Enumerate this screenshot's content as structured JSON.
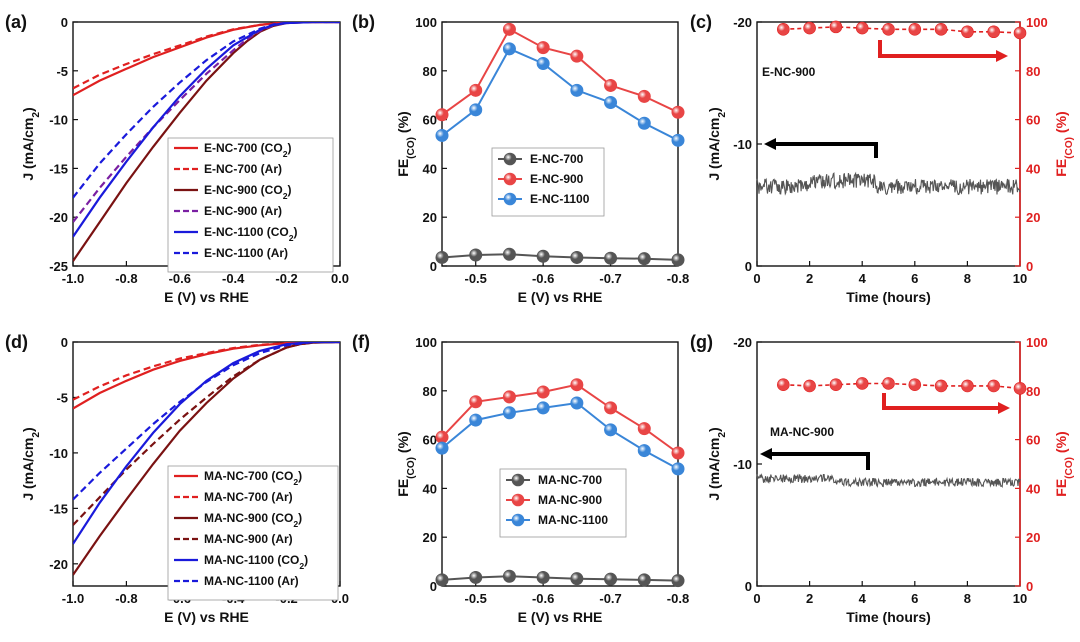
{
  "colors": {
    "red": "#e02020",
    "dark_red": "#7a1212",
    "purple": "#7a1fa2",
    "blue": "#1a1adb",
    "gray": "#555555",
    "sphere_red": "#e84545",
    "sphere_blue": "#3a86d8",
    "sphere_gray": "#555555"
  },
  "chart_data": [
    {
      "id": "a",
      "panel_label": "(a)",
      "type": "line",
      "xlabel": "E (V) vs RHE",
      "ylabel": "J (mA/cm²)",
      "ylabel_parts": [
        "J (mA/cm",
        "2",
        ")"
      ],
      "xlim": [
        -1.0,
        0.0
      ],
      "ylim": [
        -25,
        0
      ],
      "xticks": [
        "-1.0",
        "-0.8",
        "-0.6",
        "-0.4",
        "-0.2",
        "0.0"
      ],
      "xtick_values": [
        -1.0,
        -0.8,
        -0.6,
        -0.4,
        -0.2,
        0.0
      ],
      "yticks": [
        "-25",
        "-20",
        "-15",
        "-10",
        "-5",
        "0"
      ],
      "ytick_values": [
        -25,
        -20,
        -15,
        -10,
        -5,
        0
      ],
      "legend_position": "lower-right",
      "series": [
        {
          "name": "E-NC-700 (CO₂)",
          "name_parts": [
            "E-NC-700 (CO",
            "2",
            ")"
          ],
          "color": "red",
          "dash": false,
          "x": [
            -1.0,
            -0.9,
            -0.8,
            -0.7,
            -0.6,
            -0.5,
            -0.4,
            -0.3,
            -0.25,
            -0.2,
            -0.1,
            0.0
          ],
          "y": [
            -7.5,
            -6.0,
            -4.8,
            -3.6,
            -2.6,
            -1.6,
            -0.8,
            -0.3,
            -0.15,
            -0.05,
            0,
            0
          ]
        },
        {
          "name": "E-NC-700 (Ar)",
          "name_parts": [
            "E-NC-700 (Ar)"
          ],
          "color": "red",
          "dash": true,
          "x": [
            -1.0,
            -0.9,
            -0.8,
            -0.7,
            -0.6,
            -0.5,
            -0.4,
            -0.3,
            -0.25,
            -0.2,
            -0.1,
            0.0
          ],
          "y": [
            -6.8,
            -5.4,
            -4.3,
            -3.3,
            -2.4,
            -1.5,
            -0.75,
            -0.3,
            -0.15,
            -0.05,
            0,
            0
          ]
        },
        {
          "name": "E-NC-900 (CO₂)",
          "name_parts": [
            "E-NC-900 (CO",
            "2",
            ")"
          ],
          "color": "dark_red",
          "dash": false,
          "x": [
            -1.0,
            -0.9,
            -0.8,
            -0.7,
            -0.6,
            -0.5,
            -0.4,
            -0.35,
            -0.3,
            -0.25,
            -0.2,
            -0.1,
            0.0
          ],
          "y": [
            -24.5,
            -20.5,
            -16.5,
            -12.8,
            -9.3,
            -6.0,
            -3.2,
            -2.0,
            -1.0,
            -0.4,
            -0.1,
            0,
            0
          ]
        },
        {
          "name": "E-NC-900 (Ar)",
          "name_parts": [
            "E-NC-900 (Ar)"
          ],
          "color": "purple",
          "dash": true,
          "x": [
            -1.0,
            -0.9,
            -0.8,
            -0.7,
            -0.6,
            -0.5,
            -0.4,
            -0.35,
            -0.3,
            -0.25,
            -0.2,
            -0.1,
            0.0
          ],
          "y": [
            -20.5,
            -17.0,
            -13.8,
            -10.8,
            -8.0,
            -5.3,
            -2.9,
            -1.8,
            -0.9,
            -0.35,
            -0.1,
            0,
            0
          ]
        },
        {
          "name": "E-NC-1100 (CO₂)",
          "name_parts": [
            "E-NC-1100 (CO",
            "2",
            ")"
          ],
          "color": "blue",
          "dash": false,
          "x": [
            -1.0,
            -0.9,
            -0.8,
            -0.7,
            -0.6,
            -0.5,
            -0.4,
            -0.3,
            -0.25,
            -0.2,
            -0.1,
            0.0
          ],
          "y": [
            -22.0,
            -18.0,
            -14.3,
            -10.8,
            -7.6,
            -4.8,
            -2.4,
            -0.8,
            -0.3,
            -0.1,
            0,
            0
          ]
        },
        {
          "name": "E-NC-1100 (Ar)",
          "name_parts": [
            "E-NC-1100 (Ar)"
          ],
          "color": "blue",
          "dash": true,
          "x": [
            -1.0,
            -0.9,
            -0.8,
            -0.7,
            -0.6,
            -0.5,
            -0.4,
            -0.3,
            -0.25,
            -0.2,
            -0.1,
            0.0
          ],
          "y": [
            -18.0,
            -14.5,
            -11.5,
            -8.7,
            -6.2,
            -3.9,
            -2.0,
            -0.7,
            -0.25,
            -0.08,
            0,
            0
          ]
        }
      ]
    },
    {
      "id": "b",
      "panel_label": "(b)",
      "type": "line",
      "xlabel": "E (V) vs RHE",
      "ylabel": "FE(CO) (%)",
      "ylabel_parts": [
        "FE",
        "(CO)",
        " (%)"
      ],
      "xlim": [
        -0.45,
        -0.8
      ],
      "ylim": [
        0,
        100
      ],
      "xticks": [
        "-0.5",
        "-0.6",
        "-0.7",
        "-0.8"
      ],
      "xtick_values": [
        -0.5,
        -0.6,
        -0.7,
        -0.8
      ],
      "yticks": [
        "0",
        "20",
        "40",
        "60",
        "80",
        "100"
      ],
      "ytick_values": [
        0,
        20,
        40,
        60,
        80,
        100
      ],
      "legend_position": "center",
      "x": [
        -0.45,
        -0.5,
        -0.55,
        -0.6,
        -0.65,
        -0.7,
        -0.75,
        -0.8
      ],
      "series": [
        {
          "name": "E-NC-700",
          "color": "sphere_gray",
          "values": [
            3.5,
            4.5,
            4.8,
            4.0,
            3.5,
            3.2,
            3.0,
            2.5
          ]
        },
        {
          "name": "E-NC-900",
          "color": "sphere_red",
          "values": [
            62,
            72,
            97,
            89.5,
            86,
            74,
            69.5,
            63
          ]
        },
        {
          "name": "E-NC-1100",
          "color": "sphere_blue",
          "values": [
            53.5,
            64,
            89,
            83,
            72,
            67,
            58.5,
            51.5
          ]
        }
      ]
    },
    {
      "id": "c",
      "panel_label": "(c)",
      "type": "line",
      "xlabel": "Time (hours)",
      "ylabel": "J (mA/cm²)",
      "ylabel_parts": [
        "J (mA/cm",
        "2",
        ")"
      ],
      "ylabel_right": "FE(CO) (%)",
      "ylabel_right_parts": [
        "FE",
        "(CO)",
        " (%)"
      ],
      "annotation": "E-NC-900",
      "xlim": [
        0,
        10
      ],
      "ylim": [
        0,
        -20
      ],
      "ylim_right": [
        0,
        100
      ],
      "xticks": [
        "0",
        "2",
        "4",
        "6",
        "8",
        "10"
      ],
      "xtick_values": [
        0,
        2,
        4,
        6,
        8,
        10
      ],
      "yticks": [
        "0",
        "-10",
        "-20"
      ],
      "ytick_values": [
        0,
        -10,
        -20
      ],
      "yticks_right": [
        "0",
        "20",
        "40",
        "60",
        "80",
        "100"
      ],
      "ytick_values_right": [
        0,
        20,
        40,
        60,
        80,
        100
      ],
      "current_mean": -6.5,
      "current_noise_points": 400,
      "fe_x": [
        1,
        2,
        3,
        4,
        5,
        6,
        7,
        8,
        9,
        10
      ],
      "fe_values": [
        97,
        97.5,
        98,
        97.5,
        97,
        97,
        97,
        96,
        96,
        95.5
      ]
    },
    {
      "id": "d",
      "panel_label": "(d)",
      "type": "line",
      "xlabel": "E (V) vs RHE",
      "ylabel": "J (mA/cm²)",
      "ylabel_parts": [
        "J (mA/cm",
        "2",
        ")"
      ],
      "xlim": [
        -1.0,
        0.0
      ],
      "ylim": [
        -22,
        0
      ],
      "xticks": [
        "-1.0",
        "-0.8",
        "-0.6",
        "-0.4",
        "-0.2",
        "0.0"
      ],
      "xtick_values": [
        -1.0,
        -0.8,
        -0.6,
        -0.4,
        -0.2,
        0.0
      ],
      "yticks": [
        "-20",
        "-15",
        "-10",
        "-5",
        "0"
      ],
      "ytick_values": [
        -20,
        -15,
        -10,
        -5,
        0
      ],
      "legend_position": "lower-right",
      "series": [
        {
          "name": "MA-NC-700 (CO₂)",
          "name_parts": [
            "MA-NC-700 (CO",
            "2",
            ")"
          ],
          "color": "red",
          "dash": false,
          "x": [
            -1.0,
            -0.9,
            -0.8,
            -0.7,
            -0.6,
            -0.5,
            -0.4,
            -0.3,
            -0.2,
            -0.1,
            0.0
          ],
          "y": [
            -6.0,
            -4.6,
            -3.5,
            -2.5,
            -1.7,
            -1.1,
            -0.6,
            -0.3,
            -0.1,
            0,
            0
          ]
        },
        {
          "name": "MA-NC-700 (Ar)",
          "name_parts": [
            "MA-NC-700 (Ar)"
          ],
          "color": "red",
          "dash": true,
          "x": [
            -1.0,
            -0.9,
            -0.8,
            -0.7,
            -0.6,
            -0.5,
            -0.4,
            -0.3,
            -0.2,
            -0.1,
            0.0
          ],
          "y": [
            -5.2,
            -4.0,
            -3.0,
            -2.2,
            -1.5,
            -1.0,
            -0.55,
            -0.25,
            -0.1,
            0,
            0
          ]
        },
        {
          "name": "MA-NC-900 (CO₂)",
          "name_parts": [
            "MA-NC-900 (CO",
            "2",
            ")"
          ],
          "color": "dark_red",
          "dash": false,
          "x": [
            -1.0,
            -0.9,
            -0.8,
            -0.7,
            -0.6,
            -0.5,
            -0.4,
            -0.3,
            -0.2,
            -0.15,
            -0.1,
            0.0
          ],
          "y": [
            -21.0,
            -17.5,
            -14.2,
            -11.0,
            -8.0,
            -5.5,
            -3.3,
            -1.6,
            -0.5,
            -0.2,
            -0.05,
            0
          ]
        },
        {
          "name": "MA-NC-900 (Ar)",
          "name_parts": [
            "MA-NC-900 (Ar)"
          ],
          "color": "dark_red",
          "dash": true,
          "x": [
            -1.0,
            -0.9,
            -0.8,
            -0.7,
            -0.6,
            -0.5,
            -0.4,
            -0.3,
            -0.2,
            -0.15,
            -0.1,
            0.0
          ],
          "y": [
            -16.5,
            -14.0,
            -11.5,
            -9.2,
            -7.0,
            -5.0,
            -3.1,
            -1.6,
            -0.5,
            -0.2,
            -0.05,
            0
          ]
        },
        {
          "name": "MA-NC-1100 (CO₂)",
          "name_parts": [
            "MA-NC-1100 (CO",
            "2",
            ")"
          ],
          "color": "blue",
          "dash": false,
          "x": [
            -1.0,
            -0.9,
            -0.8,
            -0.7,
            -0.6,
            -0.5,
            -0.4,
            -0.3,
            -0.2,
            -0.1,
            0.0
          ],
          "y": [
            -18.2,
            -14.5,
            -11.2,
            -8.2,
            -5.6,
            -3.5,
            -1.9,
            -0.8,
            -0.2,
            0,
            0
          ]
        },
        {
          "name": "MA-NC-1100 (Ar)",
          "name_parts": [
            "MA-NC-1100 (Ar)"
          ],
          "color": "blue",
          "dash": true,
          "x": [
            -1.0,
            -0.9,
            -0.8,
            -0.7,
            -0.6,
            -0.5,
            -0.4,
            -0.3,
            -0.2,
            -0.1,
            0.0
          ],
          "y": [
            -14.2,
            -11.8,
            -9.6,
            -7.4,
            -5.4,
            -3.6,
            -2.1,
            -1.0,
            -0.3,
            0,
            0
          ]
        }
      ]
    },
    {
      "id": "f",
      "panel_label": "(f)",
      "type": "line",
      "xlabel": "E (V) vs RHE",
      "ylabel": "FE(CO) (%)",
      "ylabel_parts": [
        "FE",
        "(CO)",
        " (%)"
      ],
      "xlim": [
        -0.45,
        -0.8
      ],
      "ylim": [
        0,
        100
      ],
      "xticks": [
        "-0.5",
        "-0.6",
        "-0.7",
        "-0.8"
      ],
      "xtick_values": [
        -0.5,
        -0.6,
        -0.7,
        -0.8
      ],
      "yticks": [
        "0",
        "20",
        "40",
        "60",
        "80",
        "100"
      ],
      "ytick_values": [
        0,
        20,
        40,
        60,
        80,
        100
      ],
      "legend_position": "lower-center",
      "x": [
        -0.45,
        -0.5,
        -0.55,
        -0.6,
        -0.65,
        -0.7,
        -0.75,
        -0.8
      ],
      "series": [
        {
          "name": "MA-NC-700",
          "color": "sphere_gray",
          "values": [
            2.5,
            3.5,
            4.0,
            3.5,
            3.0,
            2.8,
            2.5,
            2.2
          ]
        },
        {
          "name": "MA-NC-900",
          "color": "sphere_red",
          "values": [
            61,
            75.5,
            77.5,
            79.5,
            82.5,
            73,
            64.5,
            54.5
          ]
        },
        {
          "name": "MA-NC-1100",
          "color": "sphere_blue",
          "values": [
            56.5,
            68,
            71,
            73,
            75,
            64,
            55.5,
            48
          ]
        }
      ]
    },
    {
      "id": "g",
      "panel_label": "(g)",
      "type": "line",
      "xlabel": "Time (hours)",
      "ylabel": "J (mA/cm²)",
      "ylabel_parts": [
        "J (mA/cm",
        "2",
        ")"
      ],
      "ylabel_right": "FE(CO) (%)",
      "ylabel_right_parts": [
        "FE",
        "(CO)",
        " (%)"
      ],
      "annotation": "MA-NC-900",
      "xlim": [
        0,
        10
      ],
      "ylim": [
        0,
        -20
      ],
      "ylim_right": [
        0,
        100
      ],
      "xticks": [
        "0",
        "2",
        "4",
        "6",
        "8",
        "10"
      ],
      "xtick_values": [
        0,
        2,
        4,
        6,
        8,
        10
      ],
      "yticks": [
        "0",
        "-10",
        "-20"
      ],
      "ytick_values": [
        0,
        -10,
        -20
      ],
      "yticks_right": [
        "0",
        "20",
        "40",
        "60",
        "80",
        "100"
      ],
      "ytick_values_right": [
        0,
        20,
        40,
        60,
        80,
        100
      ],
      "current_mean": -8.5,
      "current_noise_points": 400,
      "fe_x": [
        1,
        2,
        3,
        4,
        5,
        6,
        7,
        8,
        9,
        10
      ],
      "fe_values": [
        82.5,
        82,
        82.5,
        83,
        83,
        82.5,
        82,
        82,
        82,
        81
      ]
    }
  ]
}
